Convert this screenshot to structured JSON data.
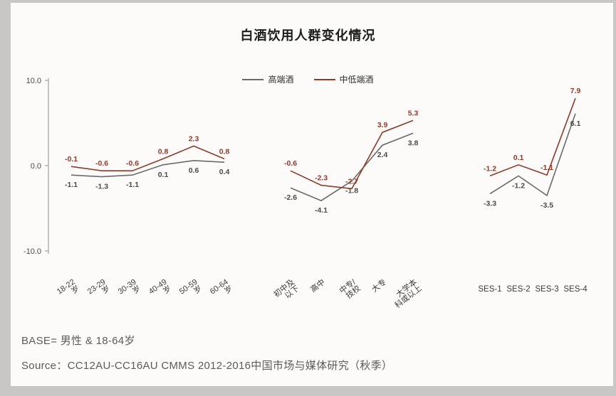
{
  "page": {
    "title": "白酒饮用人群变化情况",
    "base_note": "BASE= 男性 & 18-64岁",
    "source_note": "Source：CC12AU-CC16AU CMMS 2012-2016中国市场与媒体研究（秋季）"
  },
  "legend": [
    {
      "label": "高端酒",
      "color": "#6a6a6a"
    },
    {
      "label": "中低端酒",
      "color": "#8d3c2b"
    }
  ],
  "chart_data": {
    "type": "line",
    "title": "白酒饮用人群变化情况",
    "ylabel": "",
    "xlabel": "",
    "ylim": [
      -10,
      10
    ],
    "yticks": [
      10.0,
      0.0,
      -10.0
    ],
    "grid": false,
    "legend_position": "top-center",
    "groups": [
      {
        "categories": [
          [
            "18-22",
            "岁"
          ],
          [
            "23-29",
            "岁"
          ],
          [
            "30-39",
            "岁"
          ],
          [
            "40-49",
            "岁"
          ],
          [
            "50-59",
            "岁"
          ],
          [
            "60-64",
            "岁"
          ]
        ],
        "series": [
          {
            "name": "高端酒",
            "values": [
              -1.1,
              -1.3,
              -1.1,
              0.1,
              0.6,
              0.4
            ]
          },
          {
            "name": "中低端酒",
            "values": [
              -0.1,
              -0.6,
              -0.6,
              0.8,
              2.3,
              0.8
            ]
          }
        ]
      },
      {
        "categories": [
          [
            "初中及",
            "以下"
          ],
          [
            "高中"
          ],
          [
            "中专/",
            "技校"
          ],
          [
            "大专"
          ],
          [
            "大学本",
            "科或以上"
          ]
        ],
        "series": [
          {
            "name": "高端酒",
            "values": [
              -2.6,
              -4.1,
              -1.8,
              2.4,
              3.8
            ]
          },
          {
            "name": "中低端酒",
            "values": [
              -0.6,
              -2.3,
              -2.7,
              3.9,
              5.3
            ]
          }
        ]
      },
      {
        "categories": [
          [
            "SES-1"
          ],
          [
            "SES-2"
          ],
          [
            "SES-3"
          ],
          [
            "SES-4"
          ]
        ],
        "series": [
          {
            "name": "高端酒",
            "values": [
              -3.3,
              -1.2,
              -3.5,
              6.1
            ]
          },
          {
            "name": "中低端酒",
            "values": [
              -1.2,
              0.1,
              -1.1,
              7.9
            ]
          }
        ]
      }
    ]
  }
}
